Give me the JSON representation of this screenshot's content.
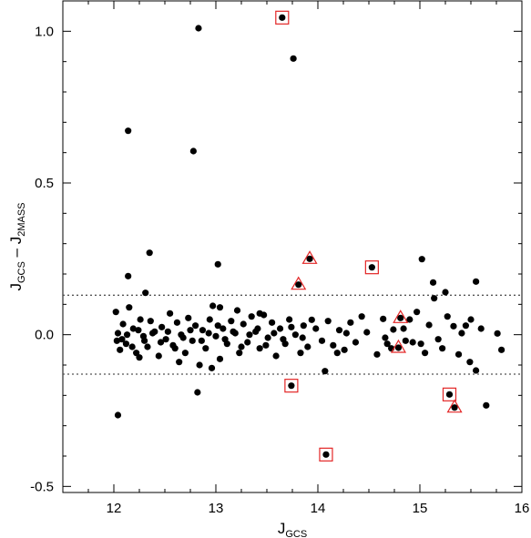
{
  "chart_data": {
    "type": "scatter",
    "xlabel": "J",
    "xlabel_sub": "GCS",
    "ylabel_parts": [
      {
        "text": "J",
        "sub": false
      },
      {
        "text": "GCS",
        "sub": true
      },
      {
        "text": " – J",
        "sub": false
      },
      {
        "text": "2MASS",
        "sub": true
      }
    ],
    "xlim": [
      11.5,
      16.0
    ],
    "ylim": [
      -0.52,
      1.1
    ],
    "xticks": [
      12,
      13,
      14,
      15,
      16
    ],
    "yticks": [
      1.0,
      0.5,
      0.0,
      -0.5
    ],
    "ytick_labels": [
      "1.0",
      "0.5",
      "0.0",
      "-0.5"
    ],
    "reference_lines": [
      0.13,
      -0.13
    ],
    "reference_line_style": "dotted",
    "grid": false,
    "colors": {
      "points": "#000000",
      "markers": "#e32626",
      "reference": "#555555"
    },
    "boxed_points": [
      [
        13.65,
        1.045
      ],
      [
        14.53,
        0.222
      ],
      [
        13.74,
        -0.168
      ],
      [
        14.08,
        -0.395
      ],
      [
        15.29,
        -0.197
      ]
    ],
    "triangle_points": [
      [
        13.92,
        0.25
      ],
      [
        13.81,
        0.165
      ],
      [
        14.81,
        0.055
      ],
      [
        14.79,
        -0.043
      ],
      [
        15.34,
        -0.24
      ]
    ],
    "points": [
      [
        13.65,
        1.045
      ],
      [
        12.83,
        1.01
      ],
      [
        13.76,
        0.91
      ],
      [
        12.14,
        0.672
      ],
      [
        12.78,
        0.605
      ],
      [
        12.35,
        0.27
      ],
      [
        13.02,
        0.232
      ],
      [
        12.14,
        0.193
      ],
      [
        12.31,
        0.138
      ],
      [
        12.04,
        -0.265
      ],
      [
        12.82,
        -0.19
      ],
      [
        15.65,
        -0.233
      ],
      [
        13.92,
        0.25
      ],
      [
        13.81,
        0.165
      ],
      [
        14.53,
        0.222
      ],
      [
        15.02,
        0.249
      ],
      [
        15.13,
        0.172
      ],
      [
        15.55,
        0.175
      ],
      [
        15.14,
        0.12
      ],
      [
        15.25,
        0.14
      ],
      [
        13.74,
        -0.168
      ],
      [
        14.08,
        -0.395
      ],
      [
        15.29,
        -0.197
      ],
      [
        15.34,
        -0.24
      ],
      [
        14.81,
        0.055
      ],
      [
        14.79,
        -0.043
      ],
      [
        15.8,
        -0.05
      ],
      [
        15.76,
        0.004
      ],
      [
        15.55,
        -0.118
      ],
      [
        15.49,
        -0.09
      ],
      [
        15.27,
        0.06
      ],
      [
        15.33,
        0.028
      ],
      [
        15.18,
        -0.015
      ],
      [
        15.38,
        -0.065
      ],
      [
        15.45,
        0.03
      ],
      [
        15.09,
        0.032
      ],
      [
        15.01,
        -0.03
      ],
      [
        14.97,
        0.075
      ],
      [
        14.9,
        0.05
      ],
      [
        14.86,
        -0.02
      ],
      [
        14.74,
        0.017
      ],
      [
        14.68,
        -0.03
      ],
      [
        14.64,
        0.052
      ],
      [
        14.58,
        -0.065
      ],
      [
        14.48,
        0.008
      ],
      [
        14.43,
        0.06
      ],
      [
        14.37,
        -0.025
      ],
      [
        14.32,
        0.04
      ],
      [
        14.26,
        -0.05
      ],
      [
        14.21,
        0.015
      ],
      [
        14.15,
        -0.035
      ],
      [
        14.1,
        0.045
      ],
      [
        14.07,
        -0.12
      ],
      [
        14.04,
        -0.02
      ],
      [
        13.98,
        0.02
      ],
      [
        13.94,
        0.049
      ],
      [
        13.9,
        -0.04
      ],
      [
        13.86,
        0.03
      ],
      [
        13.83,
        -0.06
      ],
      [
        13.78,
        0.0
      ],
      [
        13.72,
        0.05
      ],
      [
        13.68,
        -0.03
      ],
      [
        13.63,
        0.02
      ],
      [
        13.59,
        -0.07
      ],
      [
        13.55,
        0.04
      ],
      [
        13.51,
        -0.01
      ],
      [
        13.47,
        0.065
      ],
      [
        13.43,
        -0.045
      ],
      [
        13.39,
        0.01
      ],
      [
        13.35,
        0.06
      ],
      [
        13.31,
        -0.025
      ],
      [
        13.27,
        0.035
      ],
      [
        13.23,
        -0.06
      ],
      [
        13.19,
        0.005
      ],
      [
        13.15,
        0.045
      ],
      [
        13.11,
        -0.03
      ],
      [
        13.07,
        0.02
      ],
      [
        13.04,
        -0.08
      ],
      [
        13.0,
        -0.005
      ],
      [
        12.97,
        0.095
      ],
      [
        12.94,
        0.05
      ],
      [
        12.9,
        -0.045
      ],
      [
        12.87,
        0.015
      ],
      [
        12.84,
        -0.1
      ],
      [
        12.8,
        0.03
      ],
      [
        12.77,
        -0.02
      ],
      [
        12.73,
        0.055
      ],
      [
        12.7,
        -0.06
      ],
      [
        12.66,
        0.0
      ],
      [
        12.62,
        0.04
      ],
      [
        12.58,
        -0.035
      ],
      [
        12.55,
        0.07
      ],
      [
        12.51,
        -0.015
      ],
      [
        12.47,
        0.025
      ],
      [
        12.44,
        -0.07
      ],
      [
        12.4,
        0.01
      ],
      [
        12.36,
        0.045
      ],
      [
        12.33,
        -0.04
      ],
      [
        12.29,
        -0.005
      ],
      [
        12.26,
        0.05
      ],
      [
        12.22,
        -0.06
      ],
      [
        12.19,
        0.02
      ],
      [
        12.15,
        0.09
      ],
      [
        12.12,
        -0.03
      ],
      [
        12.09,
        0.035
      ],
      [
        12.06,
        -0.05
      ],
      [
        12.04,
        0.005
      ],
      [
        12.02,
        0.075
      ],
      [
        12.03,
        -0.02
      ],
      [
        12.08,
        -0.015
      ],
      [
        12.13,
        0.0
      ],
      [
        12.18,
        -0.04
      ],
      [
        12.24,
        0.015
      ],
      [
        12.3,
        -0.02
      ],
      [
        12.38,
        0.005
      ],
      [
        12.46,
        -0.025
      ],
      [
        12.53,
        0.01
      ],
      [
        12.6,
        -0.045
      ],
      [
        12.68,
        -0.01
      ],
      [
        12.75,
        0.015
      ],
      [
        12.86,
        -0.02
      ],
      [
        12.93,
        0.005
      ],
      [
        13.02,
        0.03
      ],
      [
        13.09,
        -0.015
      ],
      [
        13.17,
        0.01
      ],
      [
        13.25,
        -0.04
      ],
      [
        13.33,
        0.0
      ],
      [
        13.41,
        0.02
      ],
      [
        13.49,
        -0.035
      ],
      [
        13.57,
        0.005
      ],
      [
        13.66,
        -0.015
      ],
      [
        13.74,
        0.025
      ],
      [
        13.85,
        -0.01
      ],
      [
        14.19,
        -0.06
      ],
      [
        14.28,
        0.005
      ],
      [
        14.66,
        -0.01
      ],
      [
        14.72,
        -0.045
      ],
      [
        14.84,
        0.02
      ],
      [
        14.93,
        -0.025
      ],
      [
        15.05,
        -0.06
      ],
      [
        15.22,
        -0.045
      ],
      [
        15.41,
        0.005
      ],
      [
        15.6,
        0.02
      ],
      [
        15.5,
        0.05
      ],
      [
        12.96,
        -0.11
      ],
      [
        13.21,
        0.08
      ],
      [
        13.43,
        0.07
      ],
      [
        12.25,
        -0.075
      ],
      [
        12.64,
        -0.09
      ],
      [
        13.04,
        0.09
      ]
    ]
  }
}
